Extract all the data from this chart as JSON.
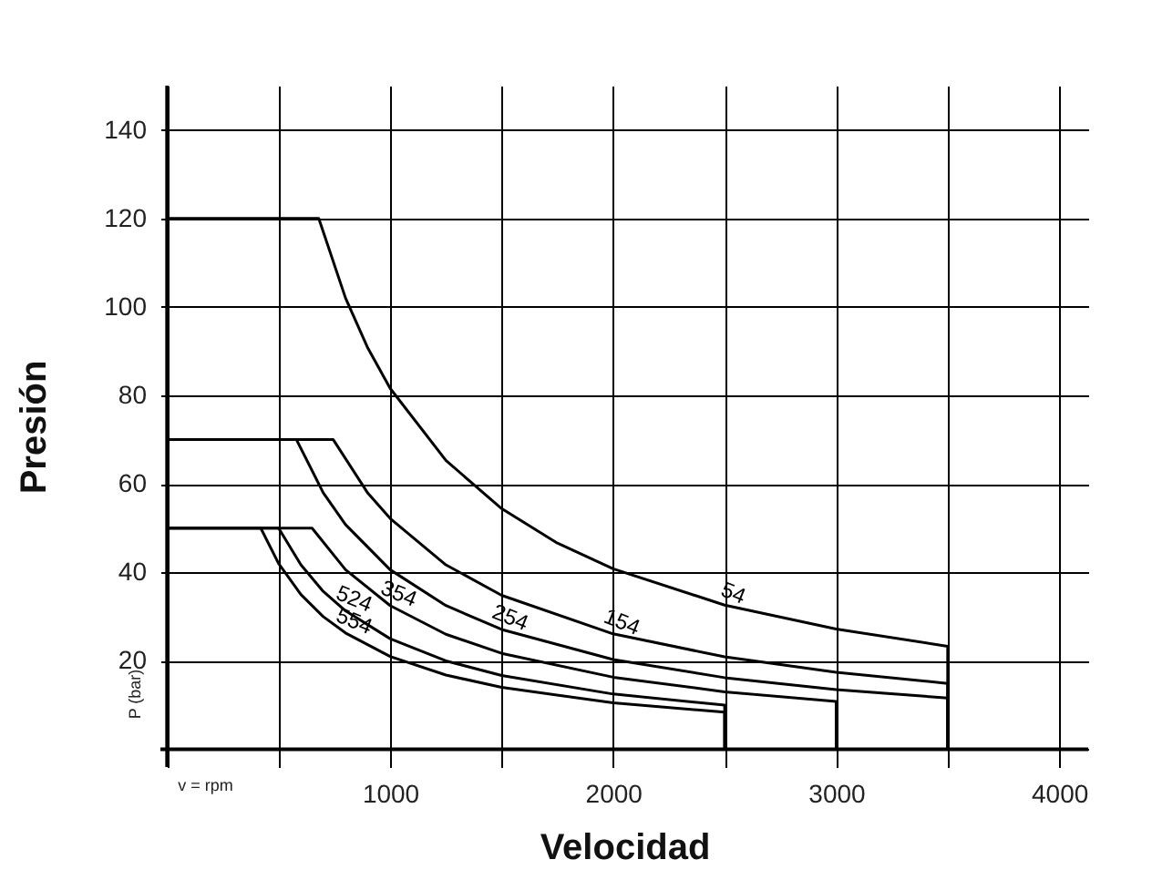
{
  "chart_data": {
    "type": "line",
    "xlabel": "Velocidad",
    "ylabel": "Presión",
    "annotations": [
      "P (bar)",
      "v = rpm"
    ],
    "xlim": [
      -30,
      4130
    ],
    "ylim": [
      -4,
      150
    ],
    "xticks": [
      {
        "value": 0,
        "label": null
      },
      {
        "value": 500,
        "label": null
      },
      1000,
      {
        "value": 1500,
        "label": null
      },
      2000,
      {
        "value": 2500,
        "label": null
      },
      3000,
      {
        "value": 3500,
        "label": null
      },
      4000
    ],
    "yticks": [
      {
        "value": 0,
        "label": null
      },
      20,
      40,
      60,
      80,
      100,
      120,
      140
    ],
    "grid": true,
    "series": [
      {
        "name": "54",
        "color": "#000000",
        "x": [
          0,
          680,
          800,
          900,
          1000,
          1250,
          1500,
          1750,
          2000,
          2500,
          3000,
          3500,
          3500
        ],
        "values": [
          120,
          120,
          102,
          90.7,
          81.6,
          65.3,
          54.4,
          46.6,
          40.8,
          32.6,
          27.2,
          23.3,
          0
        ]
      },
      {
        "name": "154",
        "color": "#000000",
        "x": [
          0,
          745,
          900,
          1000,
          1250,
          1500,
          2000,
          2500,
          3000,
          3500,
          3500
        ],
        "values": [
          70,
          70,
          57.9,
          52.2,
          41.7,
          34.8,
          26.1,
          20.9,
          17.4,
          14.9,
          0
        ]
      },
      {
        "name": "254",
        "color": "#000000",
        "x": [
          0,
          580,
          700,
          800,
          1000,
          1250,
          1500,
          2000,
          2500,
          3000,
          3500,
          3500
        ],
        "values": [
          70,
          70,
          58,
          50.8,
          40.6,
          32.5,
          27.1,
          20.3,
          16.2,
          13.5,
          11.6,
          0
        ]
      },
      {
        "name": "354",
        "color": "#000000",
        "x": [
          0,
          650,
          800,
          1000,
          1250,
          1500,
          2000,
          2500,
          3000,
          3000
        ],
        "values": [
          50,
          50,
          40.6,
          32.5,
          26,
          21.7,
          16.3,
          13,
          10.8,
          0
        ]
      },
      {
        "name": "524",
        "color": "#000000",
        "x": [
          0,
          500,
          600,
          700,
          800,
          1000,
          1250,
          1500,
          2000,
          2500,
          2500
        ],
        "values": [
          50,
          50,
          41.7,
          35.7,
          31.3,
          25,
          20,
          16.7,
          12.5,
          10,
          0
        ]
      },
      {
        "name": "554",
        "color": "#000000",
        "x": [
          0,
          420,
          500,
          600,
          700,
          800,
          1000,
          1250,
          1500,
          2000,
          2500,
          2500
        ],
        "values": [
          50,
          50,
          42,
          35,
          30,
          26.3,
          21,
          16.8,
          14,
          10.5,
          8.4,
          0
        ]
      }
    ]
  }
}
